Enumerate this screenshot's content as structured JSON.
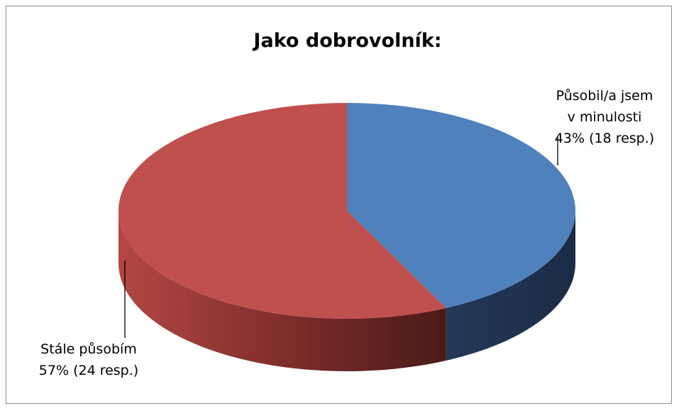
{
  "chart_data": {
    "type": "pie",
    "title": "Jako dobrovolník:",
    "slices": [
      {
        "label_lines": [
          "Působil/a jsem",
          "v minulosti",
          "43% (18 resp.)"
        ],
        "value": 18,
        "percent": 43,
        "color": "#4f81bd",
        "side_color": "#1f3450"
      },
      {
        "label_lines": [
          "Stále působím",
          "57% (24 resp.)"
        ],
        "value": 24,
        "percent": 57,
        "color": "#c0504d",
        "side_color": "#7e2e2b"
      }
    ],
    "legend": "none",
    "style": "3d"
  }
}
